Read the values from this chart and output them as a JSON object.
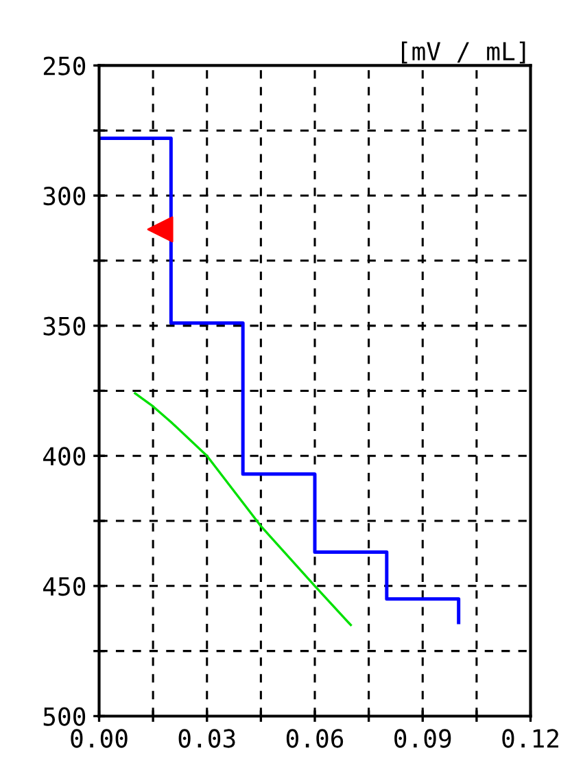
{
  "chart_data": {
    "type": "step",
    "ylabel": "[mV / mL]",
    "xlim": [
      0,
      0.12
    ],
    "ylim": [
      500,
      250
    ],
    "xticks": [
      {
        "value": 0,
        "label": "0.00"
      },
      {
        "value": 0.015,
        "label": null
      },
      {
        "value": 0.03,
        "label": "0.03"
      },
      {
        "value": 0.045,
        "label": null
      },
      {
        "value": 0.06,
        "label": "0.06"
      },
      {
        "value": 0.075,
        "label": null
      },
      {
        "value": 0.09,
        "label": "0.09"
      },
      {
        "value": 0.105,
        "label": null
      },
      {
        "value": 0.12,
        "label": "0.12"
      }
    ],
    "yticks": [
      250,
      {
        "value": 275,
        "label": null
      },
      300,
      {
        "value": 325,
        "label": null
      },
      350,
      {
        "value": 375,
        "label": null
      },
      400,
      {
        "value": 425,
        "label": null
      },
      450,
      {
        "value": 475,
        "label": null
      },
      500
    ],
    "grid": true,
    "legend": false,
    "series": [
      {
        "color": "#0000ff",
        "x": [
          0,
          0.02,
          0.04,
          0.06,
          0.08,
          0.1
        ],
        "values": [
          278,
          349,
          407,
          437,
          455,
          464
        ]
      },
      {
        "type": "line",
        "color": "#00e000",
        "x": [
          0.01,
          0.015,
          0.02,
          0.03,
          0.045,
          0.06,
          0.07
        ],
        "values": [
          376,
          381,
          387,
          400,
          427,
          450,
          465
        ]
      },
      {
        "type": "scatter",
        "color": "#ff0000",
        "marker": "triangle",
        "x": [
          0.017
        ],
        "values": [
          313
        ]
      }
    ]
  }
}
